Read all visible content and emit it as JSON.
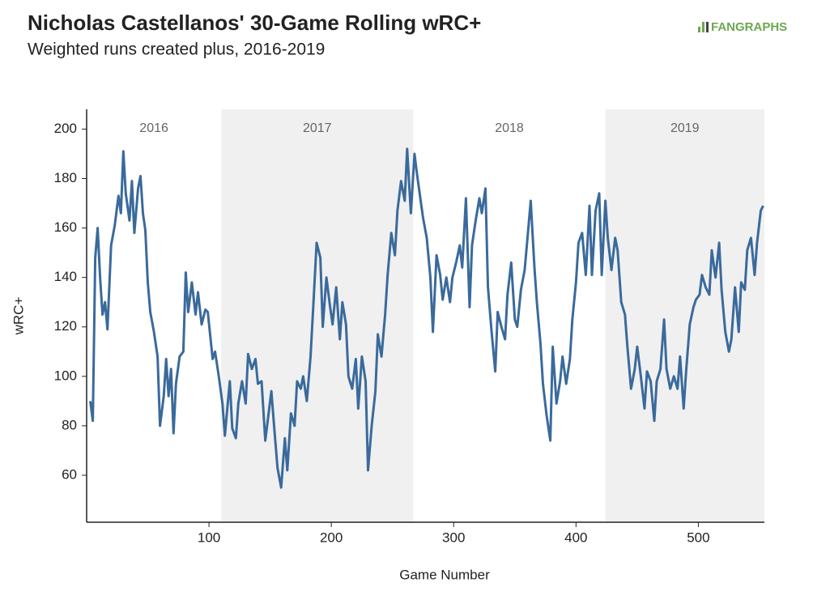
{
  "chart_data": {
    "type": "line",
    "title": "Nicholas Castellanos' 30-Game Rolling wRC+",
    "subtitle": "Weighted runs created plus, 2016-2019",
    "logo": "FANGRAPHS",
    "x_label": "Game Number",
    "y_label": "wRC+",
    "xlim": [
      0,
      554
    ],
    "ylim": [
      41,
      208
    ],
    "xticks": [
      100,
      200,
      300,
      400,
      500
    ],
    "yticks": [
      60,
      80,
      100,
      120,
      140,
      160,
      180,
      200
    ],
    "seasons": [
      {
        "label": "2016",
        "start": 0,
        "end": 110,
        "shaded": false
      },
      {
        "label": "2017",
        "start": 110,
        "end": 267,
        "shaded": true
      },
      {
        "label": "2018",
        "start": 267,
        "end": 424,
        "shaded": false
      },
      {
        "label": "2019",
        "start": 424,
        "end": 554,
        "shaded": true
      }
    ],
    "series": [
      {
        "name": "wRC+",
        "color": "#3a6a9c",
        "x": [
          3,
          5,
          7,
          9,
          11,
          13,
          15,
          17,
          20,
          23,
          26,
          28,
          30,
          32,
          35,
          37,
          39,
          42,
          44,
          46,
          48,
          50,
          52,
          55,
          58,
          60,
          63,
          65,
          67,
          69,
          71,
          73,
          76,
          79,
          81,
          83,
          86,
          89,
          91,
          94,
          97,
          99,
          103,
          105,
          108,
          111,
          113,
          115,
          117,
          119,
          122,
          124,
          127,
          130,
          132,
          135,
          138,
          140,
          143,
          146,
          148,
          151,
          154,
          156,
          159,
          162,
          164,
          167,
          170,
          172,
          175,
          177,
          180,
          183,
          185,
          188,
          191,
          193,
          196,
          199,
          201,
          204,
          207,
          209,
          212,
          214,
          217,
          220,
          222,
          225,
          228,
          230,
          233,
          236,
          238,
          241,
          244,
          246,
          249,
          252,
          254,
          257,
          260,
          262,
          265,
          268,
          270,
          273,
          275,
          278,
          281,
          283,
          286,
          289,
          291,
          294,
          297,
          299,
          302,
          305,
          307,
          310,
          313,
          315,
          318,
          321,
          323,
          326,
          328,
          331,
          334,
          336,
          339,
          342,
          344,
          347,
          350,
          352,
          355,
          358,
          360,
          363,
          366,
          368,
          371,
          373,
          376,
          379,
          381,
          384,
          387,
          389,
          392,
          395,
          397,
          400,
          402,
          405,
          408,
          411,
          413,
          416,
          419,
          421,
          424,
          426,
          429,
          432,
          434,
          437,
          440,
          442,
          445,
          448,
          450,
          453,
          456,
          458,
          461,
          464,
          466,
          469,
          472,
          474,
          477,
          480,
          483,
          485,
          488,
          490,
          493,
          496,
          498,
          501,
          503,
          506,
          509,
          511,
          514,
          517,
          519,
          522,
          525,
          527,
          530,
          533,
          535,
          538,
          540,
          543,
          546,
          548,
          551,
          553
        ],
        "values": [
          90,
          82,
          148,
          160,
          140,
          125,
          130,
          119,
          153,
          161,
          173,
          166,
          191,
          174,
          163,
          179,
          158,
          176,
          181,
          166,
          159,
          138,
          126,
          118,
          108,
          80,
          92,
          107,
          92,
          103,
          77,
          97,
          108,
          110,
          142,
          126,
          138,
          125,
          134,
          121,
          127,
          126,
          107,
          110,
          100,
          89,
          76,
          87,
          98,
          79,
          75,
          89,
          98,
          89,
          109,
          103,
          107,
          97,
          98,
          74,
          82,
          94,
          75,
          63,
          55,
          75,
          62,
          85,
          80,
          98,
          95,
          100,
          90,
          108,
          126,
          154,
          148,
          120,
          140,
          128,
          121,
          136,
          115,
          130,
          121,
          100,
          95,
          107,
          87,
          108,
          98,
          62,
          80,
          94,
          117,
          108,
          125,
          141,
          158,
          149,
          167,
          179,
          171,
          192,
          166,
          190,
          182,
          171,
          164,
          156,
          140,
          118,
          149,
          141,
          131,
          140,
          130,
          140,
          146,
          153,
          144,
          172,
          128,
          153,
          163,
          172,
          166,
          176,
          136,
          118,
          102,
          126,
          120,
          115,
          133,
          146,
          123,
          120,
          135,
          143,
          154,
          171,
          144,
          130,
          113,
          97,
          84,
          74,
          112,
          89,
          98,
          108,
          97,
          107,
          123,
          138,
          154,
          158,
          141,
          169,
          141,
          167,
          174,
          141,
          171,
          156,
          143,
          156,
          151,
          130,
          125,
          112,
          95,
          103,
          112,
          100,
          87,
          102,
          98,
          82,
          98,
          103,
          123,
          103,
          95,
          100,
          95,
          108,
          87,
          102,
          121,
          128,
          131,
          133,
          141,
          136,
          133,
          151,
          140,
          154,
          135,
          118,
          110,
          115,
          136,
          118,
          138,
          135,
          151,
          156,
          141,
          154,
          167,
          169
        ]
      }
    ]
  }
}
